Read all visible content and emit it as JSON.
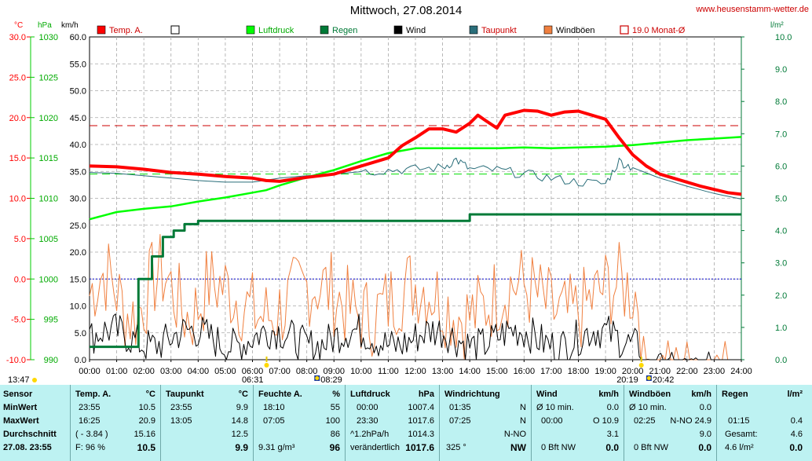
{
  "header": {
    "title": "Mittwoch, 27.08.2014",
    "website": "www.heusenstamm-wetter.de"
  },
  "legend": [
    {
      "label": "Temp. A.",
      "color": "#ff0000",
      "style": "filled"
    },
    {
      "label": "",
      "color": "#ffffff",
      "style": "empty"
    },
    {
      "label": "Luftdruck",
      "color": "#00ff00",
      "style": "filled"
    },
    {
      "label": "Regen",
      "color": "#007a37",
      "style": "filled"
    },
    {
      "label": "Wind",
      "color": "#000000",
      "style": "filled"
    },
    {
      "label": "Taupunkt",
      "color": "#2a6e7a",
      "style": "filled"
    },
    {
      "label": "Windböen",
      "color": "#f08040",
      "style": "filled"
    },
    {
      "label": "19.0 Monat-Ø",
      "color": "#cc0000",
      "style": "outline"
    }
  ],
  "chart_data": {
    "type": "line",
    "axis_units": {
      "temp": "°C",
      "pressure": "hPa",
      "wind": "km/h",
      "rain": "l/m²"
    },
    "temp_ticks": [
      "30.0",
      "25.0",
      "20.0",
      "15.0",
      "10.0",
      "5.0",
      "0.0",
      "-5.0",
      "-10.0"
    ],
    "pressure_ticks": [
      "1030",
      "1025",
      "1020",
      "1015",
      "1010",
      "1005",
      "1000",
      "995",
      "990"
    ],
    "wind_ticks": [
      "60.0",
      "55.0",
      "50.0",
      "45.0",
      "40.0",
      "35.0",
      "30.0",
      "25.0",
      "20.0",
      "15.0",
      "10.0",
      "5.0",
      "0.0"
    ],
    "rain_ticks": [
      "10.0",
      "9.0",
      "8.0",
      "7.0",
      "6.0",
      "5.0",
      "4.0",
      "3.0",
      "2.0",
      "1.0",
      "0.0"
    ],
    "x_ticks": [
      "00:00",
      "01:00",
      "02:00",
      "03:00",
      "04:00",
      "05:00",
      "06:00",
      "07:00",
      "08:00",
      "09:00",
      "10:00",
      "11:00",
      "12:00",
      "13:00",
      "14:00",
      "15:00",
      "16:00",
      "17:00",
      "18:00",
      "19:00",
      "20:00",
      "21:00",
      "22:00",
      "23:00",
      "24:00"
    ],
    "sun_markers": [
      {
        "time": "06:31",
        "hour": 6.52,
        "icon": "sunrise"
      },
      {
        "time": "08:29",
        "hour": 8.48,
        "icon": "moon"
      },
      {
        "time": "20:19",
        "hour": 20.32,
        "icon": "sunset"
      },
      {
        "time": "20:42",
        "hour": 20.7,
        "icon": "moon"
      }
    ],
    "updated_label": "13:47",
    "reference_lines": {
      "month_avg_temp": 19.0,
      "pressure_ref": 1013.0,
      "freeze_temp": 0.0
    },
    "series": [
      {
        "name": "Temp. A.",
        "axis": "temp",
        "color": "#ff0000",
        "x": [
          0,
          1,
          2,
          3,
          4,
          5,
          6,
          6.5,
          7,
          8,
          9,
          10,
          11,
          11.5,
          12,
          12.5,
          13,
          13.5,
          14,
          14.3,
          14.6,
          15,
          15.3,
          16,
          16.5,
          17,
          17.5,
          18,
          18.5,
          19,
          19.5,
          20,
          20.5,
          21,
          21.5,
          22,
          22.5,
          23,
          23.5,
          24
        ],
        "y": [
          14.0,
          13.9,
          13.6,
          13.2,
          13.0,
          12.7,
          12.5,
          12.2,
          12.1,
          12.6,
          13.0,
          14.0,
          15.0,
          16.5,
          17.5,
          18.6,
          18.6,
          18.2,
          19.3,
          20.3,
          19.6,
          18.7,
          20.3,
          20.9,
          20.8,
          20.3,
          20.7,
          20.8,
          20.3,
          19.8,
          17.5,
          15.4,
          14.0,
          13.0,
          12.5,
          12.0,
          11.5,
          11.1,
          10.7,
          10.5
        ]
      },
      {
        "name": "Luftdruck",
        "axis": "pressure",
        "color": "#00ff00",
        "x": [
          0,
          1,
          2,
          3,
          4,
          5,
          6,
          6.5,
          7,
          8,
          9,
          10,
          11,
          12,
          13,
          14,
          15,
          16,
          17,
          18,
          19,
          20,
          21,
          22,
          23,
          24
        ],
        "y": [
          1007.4,
          1008.3,
          1008.7,
          1009.0,
          1009.6,
          1010.1,
          1010.7,
          1011.0,
          1011.6,
          1012.6,
          1013.5,
          1014.6,
          1015.6,
          1016.2,
          1016.2,
          1016.2,
          1016.2,
          1016.3,
          1016.2,
          1016.3,
          1016.4,
          1016.6,
          1016.9,
          1017.2,
          1017.4,
          1017.6
        ]
      },
      {
        "name": "Taupunkt",
        "axis": "temp",
        "color": "#2a6e7a",
        "x": [
          0,
          1,
          2,
          3,
          4,
          5,
          6,
          7,
          8,
          9,
          10,
          11,
          12,
          13,
          13.5,
          14,
          15,
          16,
          17,
          18,
          19,
          19.5,
          20,
          21,
          22,
          23,
          24
        ],
        "y": [
          13.2,
          13.1,
          12.8,
          12.5,
          12.2,
          12.0,
          12.0,
          12.5,
          12.8,
          13.0,
          13.3,
          13.5,
          13.6,
          13.8,
          14.8,
          13.6,
          13.5,
          13.0,
          12.5,
          12.0,
          11.8,
          14.6,
          13.8,
          12.5,
          11.5,
          10.6,
          9.9
        ]
      },
      {
        "name": "Regen",
        "axis": "rain",
        "color": "#007a37",
        "x": [
          0,
          0.4,
          1.2,
          1.8,
          2.3,
          2.7,
          3.1,
          3.5,
          4.0,
          13.9,
          14,
          24
        ],
        "y": [
          0.4,
          0.4,
          0.4,
          2.5,
          3.2,
          3.8,
          4.0,
          4.2,
          4.3,
          4.3,
          4.5,
          4.5
        ]
      },
      {
        "name": "Wind",
        "axis": "wind",
        "color": "#000000",
        "y_range": [
          0,
          10.9
        ]
      },
      {
        "name": "Windböen",
        "axis": "wind",
        "color": "#f08040",
        "y_range": [
          0,
          24.9
        ]
      }
    ]
  },
  "table": {
    "labels": {
      "sensor": "Sensor",
      "min": "MinWert",
      "max": "MaxWert",
      "avg": "Durchschnitt",
      "date": "27.08. 23:55"
    },
    "temp": {
      "title": "Temp. A.",
      "unit": "°C",
      "min_time": "23:55",
      "min": "10.5",
      "max_time": "16:25",
      "max": "20.9",
      "avg_note": "( - 3.84 )",
      "avg": "15.16",
      "cur_note": "F: 96 %",
      "cur": "10.5"
    },
    "dew": {
      "title": "Taupunkt",
      "unit": "°C",
      "min_time": "23:55",
      "min": "9.9",
      "max_time": "13:05",
      "max": "14.8",
      "avg": "12.5",
      "cur": "9.9"
    },
    "hum": {
      "title": "Feuchte A.",
      "unit": "%",
      "min_time": "18:10",
      "min": "55",
      "max_time": "07:05",
      "max": "100",
      "avg": "86",
      "cur_note": "9.31 g/m³",
      "cur": "96"
    },
    "press": {
      "title": "Luftdruck",
      "unit": "hPa",
      "min_time": "00:00",
      "min": "1007.4",
      "max_time": "23:30",
      "max": "1017.6",
      "avg_note": "^1.2hPa/h",
      "avg": "1014.3",
      "cur_note": "verändertlich",
      "cur": "1017.6"
    },
    "dir": {
      "title": "Windrichtung",
      "min_time": "01:35",
      "min": "N",
      "max_time": "07:25",
      "max": "N",
      "avg": "N-NO",
      "cur_note": "325 °",
      "cur": "NW"
    },
    "wind": {
      "title": "Wind",
      "unit": "km/h",
      "min_note": "Ø 10 min.",
      "min": "0.0",
      "max_time": "00:00",
      "max": "O 10.9",
      "avg": "3.1",
      "cur_note": "0 Bft NW",
      "cur": "0.0"
    },
    "gust": {
      "title": "Windböen",
      "unit": "km/h",
      "min_note": "Ø 10 min.",
      "min": "0.0",
      "max_time": "02:25",
      "max": "N-NO 24.9",
      "avg": "9.0",
      "cur_note": "0 Bft NW",
      "cur": "0.0"
    },
    "rain": {
      "title": "Regen",
      "unit": "l/m²",
      "max_time": "01:15",
      "max": "0.4",
      "avg_note": "Gesamt:",
      "avg": "4.6",
      "cur_note": "4.6 l/m²",
      "cur": "0.0"
    }
  }
}
